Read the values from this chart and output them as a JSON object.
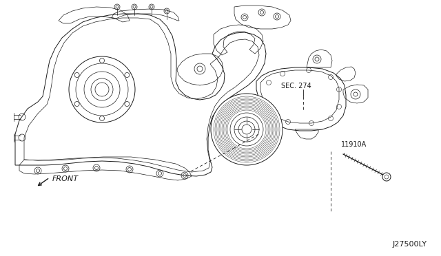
{
  "bg_color": "#ffffff",
  "line_color": "#1a1a1a",
  "label_sec274": "SEC. 274",
  "label_11910a": "11910A",
  "label_front": "FRONT",
  "label_j27500ly": "J27500LY",
  "fig_width": 6.4,
  "fig_height": 3.72,
  "dpi": 100
}
